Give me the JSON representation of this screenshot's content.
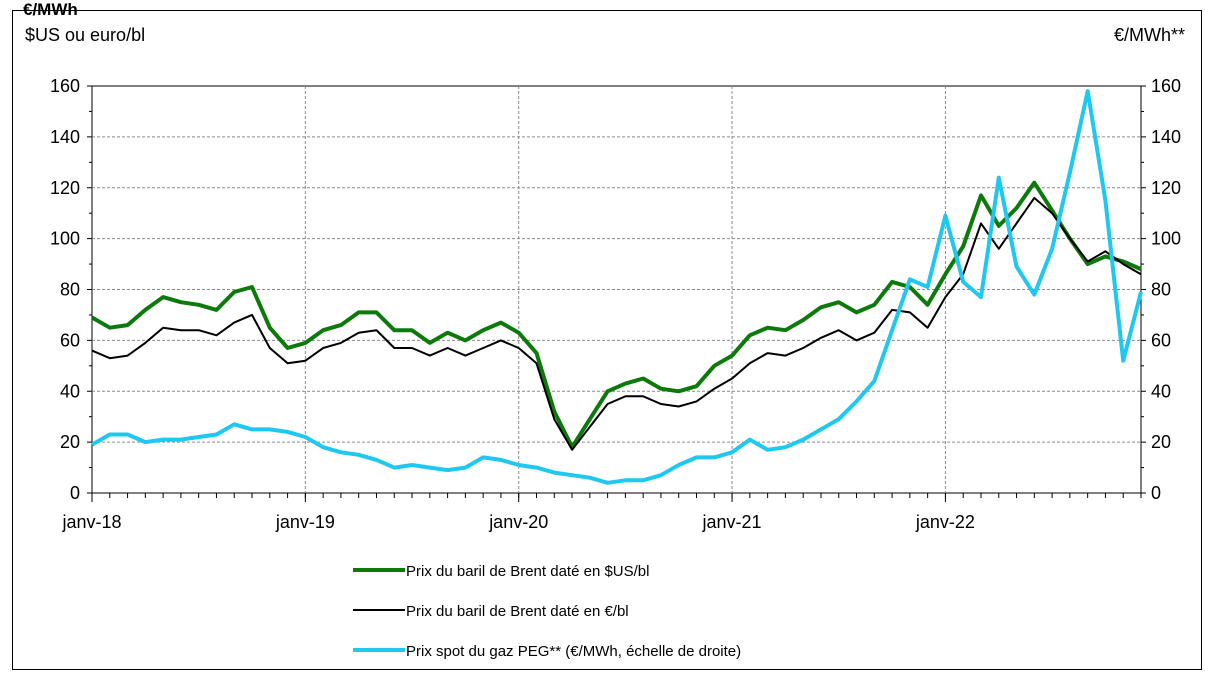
{
  "top_title": "€/MWh",
  "chart_data": {
    "type": "line",
    "left_axis_label": "$US ou euro/bl",
    "right_axis_label": "€/MWh**",
    "ylim_left": [
      0,
      160
    ],
    "ylim_right": [
      0,
      160
    ],
    "yticks": [
      0,
      20,
      40,
      60,
      80,
      100,
      120,
      140,
      160
    ],
    "x_ticks": [
      "janv-18",
      "janv-19",
      "janv-20",
      "janv-21",
      "janv-22"
    ],
    "x_tick_month_index": [
      0,
      12,
      24,
      36,
      48
    ],
    "months_total": 60,
    "grid": true,
    "legend_placement": "bottom",
    "series": [
      {
        "name": "Prix du baril de Brent daté en $US/bl",
        "color": "#0b7a0b",
        "axis": "left",
        "values": [
          69,
          65,
          66,
          72,
          77,
          75,
          74,
          72,
          79,
          81,
          65,
          57,
          59,
          64,
          66,
          71,
          71,
          64,
          64,
          59,
          63,
          60,
          64,
          67,
          63,
          55,
          32,
          18,
          29,
          40,
          43,
          45,
          41,
          40,
          42,
          50,
          54,
          62,
          65,
          64,
          68,
          73,
          75,
          71,
          74,
          83,
          81,
          74,
          86,
          97,
          117,
          105,
          112,
          122,
          111,
          100,
          90,
          93,
          91,
          88
        ]
      },
      {
        "name": "Prix du baril de Brent daté en €/bl",
        "color": "#000000",
        "axis": "left",
        "values": [
          56,
          53,
          54,
          59,
          65,
          64,
          64,
          62,
          67,
          70,
          57,
          51,
          52,
          57,
          59,
          63,
          64,
          57,
          57,
          54,
          57,
          54,
          57,
          60,
          57,
          51,
          29,
          17,
          26,
          35,
          38,
          38,
          35,
          34,
          36,
          41,
          45,
          51,
          55,
          54,
          57,
          61,
          64,
          60,
          63,
          72,
          71,
          65,
          77,
          86,
          106,
          96,
          106,
          116,
          110,
          100,
          91,
          95,
          90,
          86
        ]
      },
      {
        "name": "Prix spot du gaz PEG** (€/MWh, échelle de droite)",
        "color": "#1ec8f0",
        "axis": "right",
        "values": [
          19,
          23,
          23,
          20,
          21,
          21,
          22,
          23,
          27,
          25,
          25,
          24,
          22,
          18,
          16,
          15,
          13,
          10,
          11,
          10,
          9,
          10,
          14,
          13,
          11,
          10,
          8,
          7,
          6,
          4,
          5,
          5,
          7,
          11,
          14,
          14,
          16,
          21,
          17,
          18,
          21,
          25,
          29,
          36,
          44,
          64,
          84,
          81,
          109,
          83,
          77,
          124,
          89,
          78,
          96,
          126,
          158,
          115,
          52,
          79
        ]
      }
    ]
  }
}
